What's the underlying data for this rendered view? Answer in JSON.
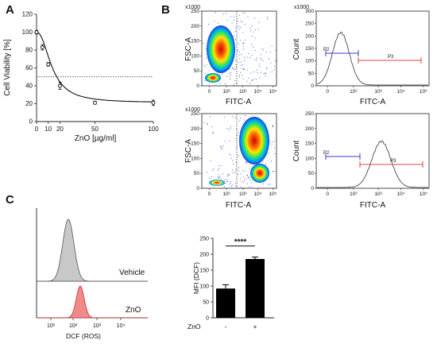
{
  "panels": {
    "a": "A",
    "b": "B",
    "c": "C"
  },
  "panel_a": {
    "chart_data": {
      "type": "scatter",
      "xlabel": "ZnO [µg/ml]",
      "ylabel": "Cell Viability [%]",
      "xlim": [
        0,
        100
      ],
      "ylim": [
        0,
        120
      ],
      "xticks": [
        "0",
        "10",
        "20",
        "50",
        "100"
      ],
      "yticks": [
        "0",
        "20",
        "40",
        "60",
        "80",
        "100",
        "120"
      ],
      "x": [
        0,
        5,
        10,
        20,
        50,
        100
      ],
      "y": [
        100,
        83,
        64,
        40,
        21,
        21
      ],
      "err": [
        2,
        3,
        2,
        4,
        1.5,
        3
      ],
      "reference_line_y": 50,
      "fit": "sigmoidal decay curve"
    }
  },
  "panel_b": {
    "dot_plot_1": {
      "ylabel": "FSC-A",
      "xlabel": "FITC-A",
      "ymult": "x1000",
      "yticks": [
        "0",
        "50",
        "100",
        "150",
        "200",
        "250"
      ],
      "xticks": [
        "0",
        "10²",
        "10³",
        "10⁴",
        "10⁵"
      ]
    },
    "histogram_1": {
      "ylabel": "Count",
      "xlabel": "FITC-A",
      "ymult": "x1000",
      "yticks": [
        "0",
        "50",
        "100",
        "150",
        "200",
        "250",
        "300"
      ],
      "xticks": [
        "0",
        "10²",
        "10³",
        "10⁴",
        "10⁵"
      ],
      "gate_p2": "P2",
      "gate_p3": "P3"
    },
    "dot_plot_2": {
      "ylabel": "FSC-A",
      "xlabel": "FITC-A",
      "ymult": "x1000",
      "yticks": [
        "0",
        "50",
        "100",
        "150",
        "200",
        "250"
      ],
      "xticks": [
        "0",
        "10²",
        "10³",
        "10⁴",
        "10⁵"
      ]
    },
    "histogram_2": {
      "ylabel": "Count",
      "xlabel": "FITC-A",
      "yticks": [
        "0",
        "50",
        "100",
        "150",
        "200",
        "250"
      ],
      "xticks": [
        "0",
        "10²",
        "10³",
        "10⁴",
        "10⁵"
      ],
      "gate_p2": "P2",
      "gate_p3": "P3"
    }
  },
  "panel_c": {
    "overlay": {
      "xlabel": "DCF (ROS)",
      "xticks": [
        "10¹",
        "10²",
        "10³",
        "10⁴"
      ],
      "label_top": "Vehicle",
      "label_bottom": "ZnO",
      "color_top": "#c8c8c8",
      "color_bottom": "#f08a8a"
    },
    "chart_data": {
      "type": "bar",
      "categories": [
        "-",
        "+"
      ],
      "xprefix": "ZnO",
      "values": [
        92,
        185
      ],
      "err": [
        12,
        6
      ],
      "ylabel": "MFI (DCF)",
      "ylim": [
        0,
        250
      ],
      "yticks": [
        "0",
        "50",
        "100",
        "150",
        "200",
        "250"
      ],
      "significance": "****",
      "bar_color": "#000000"
    }
  }
}
